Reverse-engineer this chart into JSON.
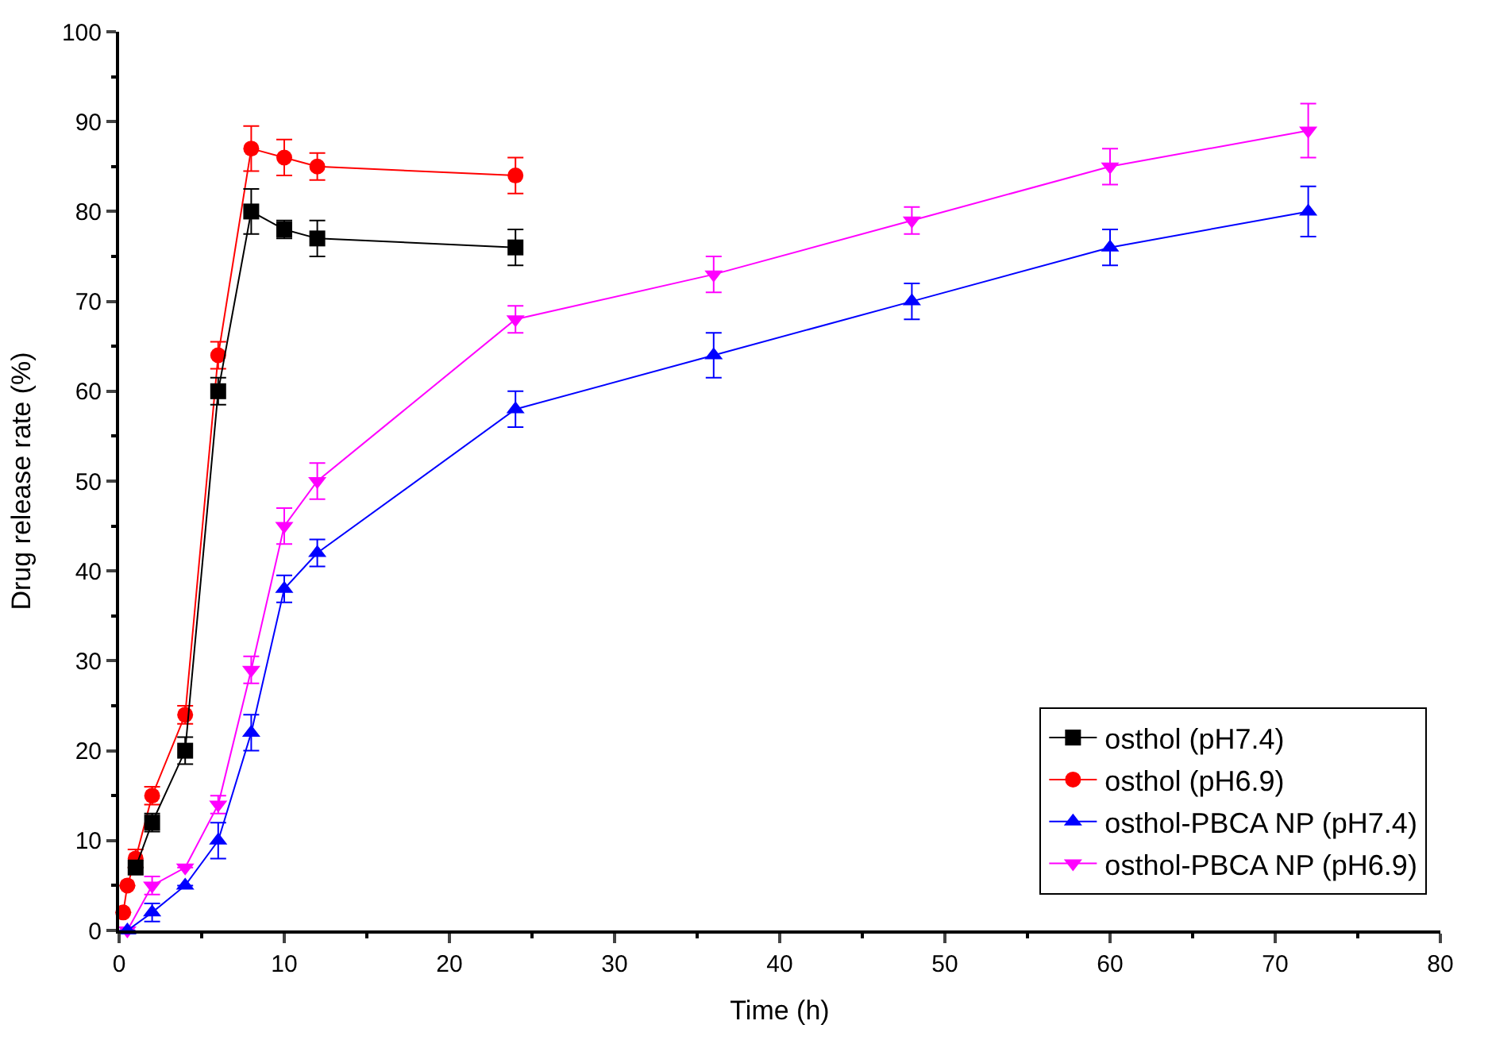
{
  "chart_data": {
    "type": "line",
    "xlabel": "Time (h)",
    "ylabel": "Drug release rate (%)",
    "xlim": [
      0,
      80
    ],
    "xticks": [
      0,
      10,
      20,
      30,
      40,
      50,
      60,
      70,
      80
    ],
    "ylim": [
      0,
      100
    ],
    "yticks": [
      0,
      10,
      20,
      30,
      40,
      50,
      60,
      70,
      80,
      90,
      100
    ],
    "legend": "bottom right",
    "line_style": "solid",
    "series": [
      {
        "name": "osthol (pH7.4)",
        "color": "#000000",
        "marker": "square",
        "x": [
          1,
          2,
          4,
          6,
          8,
          10,
          12,
          24
        ],
        "values": [
          7,
          12,
          20,
          60,
          80,
          78,
          77,
          76
        ],
        "errors": [
          null,
          1,
          1.5,
          1.5,
          2.5,
          1,
          2,
          2
        ]
      },
      {
        "name": "osthol (pH6.9)",
        "color": "#ff0000",
        "marker": "circle",
        "x": [
          0.25,
          0.5,
          1,
          2,
          4,
          6,
          8,
          10,
          12,
          24
        ],
        "values": [
          2,
          5,
          8,
          15,
          24,
          64,
          87,
          86,
          85,
          84
        ],
        "errors": [
          null,
          null,
          1,
          1,
          1,
          1.5,
          2.5,
          2,
          1.5,
          2
        ]
      },
      {
        "name": "osthol-PBCA NP (pH7.4)",
        "color": "#0000ff",
        "marker": "triangle",
        "x": [
          0.5,
          2,
          4,
          6,
          8,
          10,
          12,
          24,
          36,
          48,
          60,
          72
        ],
        "values": [
          0,
          2,
          5,
          10,
          22,
          38,
          42,
          58,
          64,
          70,
          76,
          80
        ],
        "errors": [
          null,
          1,
          null,
          2,
          2,
          1.5,
          1.5,
          2,
          2.5,
          2,
          2,
          2.8
        ]
      },
      {
        "name": "osthol-PBCA NP (pH6.9)",
        "color": "#ff00ff",
        "marker": "triangle-down",
        "x": [
          0.5,
          2,
          4,
          6,
          8,
          10,
          12,
          24,
          36,
          48,
          60,
          72
        ],
        "values": [
          0,
          5,
          7,
          14,
          29,
          45,
          50,
          68,
          73,
          79,
          85,
          89
        ],
        "errors": [
          null,
          1,
          null,
          1,
          1.5,
          2,
          2,
          1.5,
          2,
          1.5,
          2,
          3
        ]
      }
    ]
  }
}
